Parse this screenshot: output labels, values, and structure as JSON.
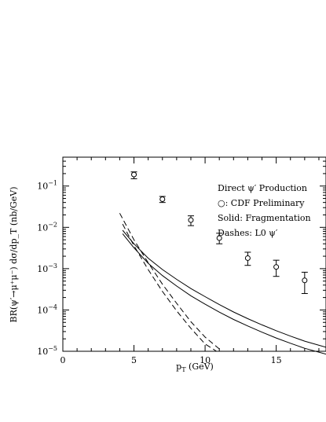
{
  "chart_data": {
    "type": "scatter",
    "xlabel": "p_T (GeV)",
    "ylabel": "BR(ψ′→μ⁺μ⁻)  dσ/dp_T (nb/GeV)",
    "xlim": [
      0,
      18.5
    ],
    "ylim": [
      1e-05,
      0.5
    ],
    "yscale": "log",
    "x_ticks": [
      0,
      5,
      10,
      15
    ],
    "x_tick_labels": [
      "0",
      "5",
      "10",
      "15"
    ],
    "y_ticks": [
      1e-05,
      0.0001,
      0.001,
      0.01,
      0.1
    ],
    "y_tick_labels": [
      {
        "base": "10",
        "exp": "−5"
      },
      {
        "base": "10",
        "exp": "−4"
      },
      {
        "base": "10",
        "exp": "−3"
      },
      {
        "base": "10",
        "exp": "−2"
      },
      {
        "base": "10",
        "exp": "−1"
      }
    ],
    "legend": [
      "Direct ψ′ Production",
      "○: CDF Preliminary",
      "Solid: Fragmentation",
      "Dashes: L0 ψ′"
    ],
    "legend_position": "top-right",
    "data_points": {
      "x": [
        5,
        7,
        9,
        11,
        13,
        15,
        17
      ],
      "y": [
        0.19,
        0.048,
        0.015,
        0.0055,
        0.0018,
        0.0011,
        0.00052
      ],
      "y_low": [
        0.15,
        0.04,
        0.011,
        0.004,
        0.0012,
        0.00065,
        0.00025
      ],
      "y_high": [
        0.22,
        0.056,
        0.019,
        0.0072,
        0.0025,
        0.0016,
        0.00082
      ]
    },
    "solid_curves": [
      {
        "x": [
          4.2,
          5,
          6,
          7,
          8,
          9,
          10,
          11,
          12,
          13,
          14,
          15,
          16,
          17,
          18.5
        ],
        "y": [
          0.0085,
          0.004,
          0.0018,
          0.00095,
          0.00055,
          0.00033,
          0.00021,
          0.000135,
          8.95e-05,
          6.15e-05,
          4.35e-05,
          3.15e-05,
          2.33e-05,
          1.76e-05,
          1.25e-05
        ]
      },
      {
        "x": [
          4.2,
          5,
          6,
          7,
          8,
          9,
          10,
          11,
          12,
          13,
          14,
          15,
          16,
          17,
          18.5
        ],
        "y": [
          0.007,
          0.0032,
          0.00135,
          0.00068,
          0.00038,
          0.00022,
          0.000138,
          8.85e-05,
          5.9e-05,
          4.1e-05,
          2.9e-05,
          2.1e-05,
          1.56e-05,
          1.18e-05,
          8.5e-06
        ]
      }
    ],
    "dashed_curves": [
      {
        "x": [
          4.0,
          5,
          6,
          7,
          8,
          9,
          10,
          11.2
        ],
        "y": [
          0.022,
          0.005,
          0.0014,
          0.00042,
          0.000145,
          5.2e-05,
          2.2e-05,
          1e-05
        ]
      },
      {
        "x": [
          4.2,
          5,
          6,
          7,
          8,
          9,
          10,
          10.8
        ],
        "y": [
          0.012,
          0.0036,
          0.00095,
          0.00028,
          9.5e-05,
          3.6e-05,
          1.5e-05,
          1e-05
        ]
      }
    ]
  }
}
